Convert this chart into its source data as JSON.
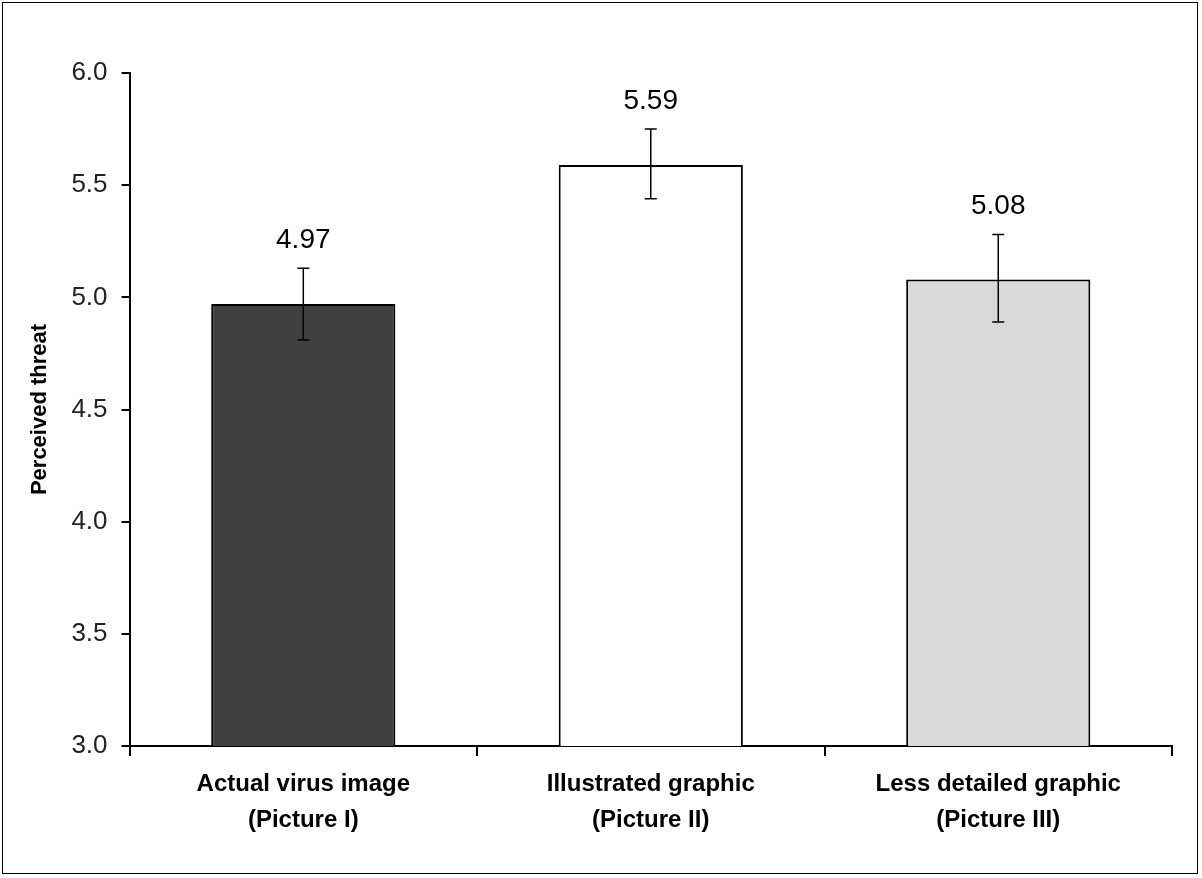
{
  "chart_data": {
    "type": "bar",
    "ylabel": "Perceived threat",
    "categories": [
      "Actual virus image\n(Picture I)",
      "Illustrated graphic\n(Picture II)",
      "Less detailed graphic\n(Picture III)"
    ],
    "values": [
      4.97,
      5.59,
      5.08
    ],
    "colors": [
      "#404040",
      "#ffffff",
      "#d9d9d9"
    ],
    "errors": [
      [
        4.81,
        5.13
      ],
      [
        5.44,
        5.75
      ],
      [
        4.89,
        5.28
      ]
    ],
    "ylim": [
      3.0,
      6.0
    ],
    "yticks": [
      {
        "value": 3,
        "label": "3.0"
      },
      {
        "value": 3.5,
        "label": "3.5"
      },
      {
        "value": 4,
        "label": "4.0"
      },
      {
        "value": 4.5,
        "label": "4.5"
      },
      {
        "value": 5,
        "label": "5.0"
      },
      {
        "value": 5.5,
        "label": "5.5"
      },
      {
        "value": 6,
        "label": "6.0"
      }
    ],
    "grid": false,
    "data_labels": true
  }
}
